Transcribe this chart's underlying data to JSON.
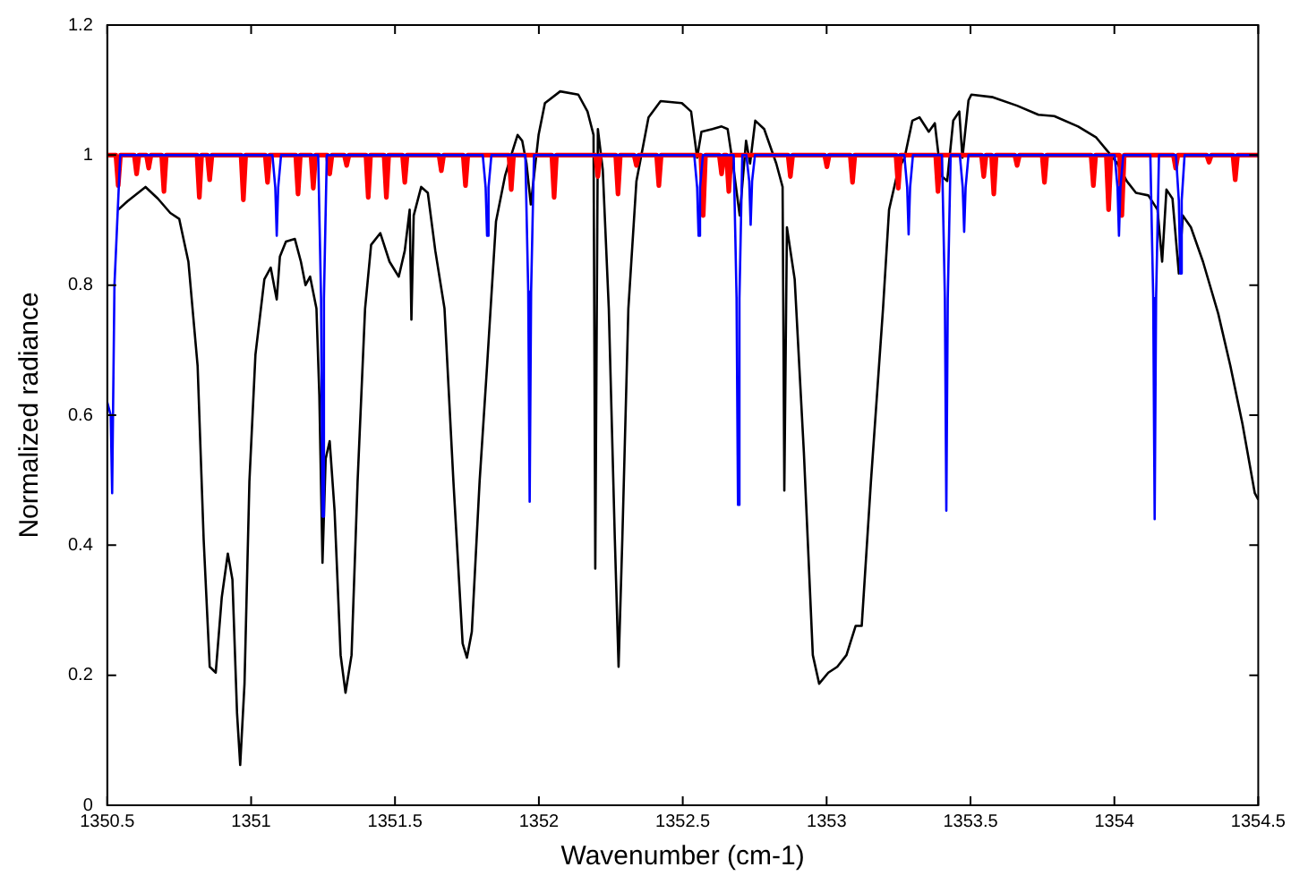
{
  "chart_data": {
    "type": "line",
    "xlabel": "Wavenumber (cm-1)",
    "ylabel": "Normalized radiance",
    "xlim": [
      1350.5,
      1354.5
    ],
    "xticks": [
      1350.5,
      1351,
      1351.5,
      1352,
      1352.5,
      1353,
      1353.5,
      1354,
      1354.5
    ],
    "ylim": [
      0,
      1.2
    ],
    "yticks": [
      0,
      0.2,
      0.4,
      0.6,
      0.8,
      1,
      1.2
    ],
    "grid": false,
    "legend": false,
    "marker": "none",
    "series": [
      {
        "color": "#000000",
        "x": [
          1350.538,
          1350.57,
          1350.633,
          1350.676,
          1350.719,
          1350.75,
          1350.782,
          1350.814,
          1350.835,
          1350.856,
          1350.877,
          1350.898,
          1350.919,
          1350.935,
          1350.951,
          1350.962,
          1350.977,
          1350.994,
          1351.015,
          1351.046,
          1351.068,
          1351.089,
          1351.1,
          1351.121,
          1351.152,
          1351.173,
          1351.189,
          1351.205,
          1351.227,
          1351.237,
          1351.248,
          1351.259,
          1351.273,
          1351.29,
          1351.311,
          1351.328,
          1351.349,
          1351.37,
          1351.396,
          1351.417,
          1351.449,
          1351.481,
          1351.513,
          1351.534,
          1351.551,
          1351.557,
          1351.565,
          1351.591,
          1351.614,
          1351.64,
          1351.672,
          1351.703,
          1351.735,
          1351.75,
          1351.767,
          1351.794,
          1351.82,
          1351.851,
          1351.883,
          1351.904,
          1351.926,
          1351.942,
          1351.957,
          1351.972,
          1351.999,
          1352.021,
          1352.074,
          1352.137,
          1352.169,
          1352.19,
          1352.196,
          1352.205,
          1352.222,
          1352.243,
          1352.264,
          1352.277,
          1352.29,
          1352.311,
          1352.339,
          1352.381,
          1352.423,
          1352.497,
          1352.529,
          1352.55,
          1352.565,
          1352.603,
          1352.635,
          1352.656,
          1352.677,
          1352.698,
          1352.72,
          1352.734,
          1352.752,
          1352.783,
          1352.825,
          1352.847,
          1352.853,
          1352.862,
          1352.889,
          1352.921,
          1352.952,
          1352.974,
          1353.006,
          1353.037,
          1353.069,
          1353.101,
          1353.122,
          1353.154,
          1353.196,
          1353.217,
          1353.249,
          1353.271,
          1353.298,
          1353.323,
          1353.355,
          1353.376,
          1353.397,
          1353.419,
          1353.44,
          1353.461,
          1353.472,
          1353.493,
          1353.503,
          1353.578,
          1353.662,
          1353.736,
          1353.791,
          1353.874,
          1353.937,
          1353.98,
          1354.011,
          1354.043,
          1354.075,
          1354.118,
          1354.15,
          1354.166,
          1354.181,
          1354.202,
          1354.224,
          1354.238,
          1354.266,
          1354.308,
          1354.361,
          1354.403,
          1354.445,
          1354.488,
          1354.5
        ],
        "values": [
          0.916,
          0.929,
          0.951,
          0.933,
          0.911,
          0.902,
          0.836,
          0.676,
          0.409,
          0.213,
          0.204,
          0.32,
          0.387,
          0.347,
          0.142,
          0.062,
          0.187,
          0.498,
          0.693,
          0.809,
          0.827,
          0.778,
          0.844,
          0.867,
          0.871,
          0.836,
          0.8,
          0.813,
          0.764,
          0.631,
          0.373,
          0.533,
          0.56,
          0.453,
          0.231,
          0.173,
          0.231,
          0.498,
          0.764,
          0.862,
          0.88,
          0.836,
          0.813,
          0.853,
          0.916,
          0.747,
          0.907,
          0.951,
          0.942,
          0.853,
          0.764,
          0.498,
          0.249,
          0.227,
          0.267,
          0.498,
          0.676,
          0.898,
          0.969,
          1.0,
          1.031,
          1.022,
          0.987,
          0.924,
          1.031,
          1.08,
          1.098,
          1.093,
          1.067,
          1.031,
          0.364,
          1.04,
          0.978,
          0.764,
          0.409,
          0.213,
          0.409,
          0.764,
          0.96,
          1.058,
          1.083,
          1.08,
          1.067,
          0.996,
          1.036,
          1.04,
          1.044,
          1.04,
          0.978,
          0.907,
          1.022,
          0.987,
          1.053,
          1.04,
          0.987,
          0.951,
          0.484,
          0.889,
          0.809,
          0.542,
          0.231,
          0.187,
          0.204,
          0.213,
          0.231,
          0.276,
          0.276,
          0.498,
          0.764,
          0.916,
          0.978,
          0.996,
          1.053,
          1.058,
          1.036,
          1.049,
          0.969,
          0.96,
          1.053,
          1.067,
          0.996,
          1.084,
          1.093,
          1.089,
          1.076,
          1.062,
          1.06,
          1.044,
          1.027,
          1.004,
          0.987,
          0.96,
          0.942,
          0.938,
          0.916,
          0.836,
          0.947,
          0.933,
          0.818,
          0.907,
          0.889,
          0.836,
          0.756,
          0.676,
          0.587,
          0.48,
          0.47
        ]
      },
      {
        "color": "#ff0000",
        "x": [
          1350.5,
          1350.53,
          1350.538,
          1350.546,
          1350.594,
          1350.602,
          1350.61,
          1350.636,
          1350.644,
          1350.652,
          1350.689,
          1350.697,
          1350.705,
          1350.812,
          1350.82,
          1350.828,
          1350.848,
          1350.856,
          1350.864,
          1350.965,
          1350.973,
          1350.981,
          1351.049,
          1351.057,
          1351.065,
          1351.155,
          1351.163,
          1351.171,
          1351.208,
          1351.216,
          1351.224,
          1351.265,
          1351.273,
          1351.281,
          1351.324,
          1351.332,
          1351.34,
          1351.399,
          1351.407,
          1351.415,
          1351.462,
          1351.47,
          1351.478,
          1351.526,
          1351.534,
          1351.542,
          1351.653,
          1351.661,
          1351.669,
          1351.737,
          1351.745,
          1351.753,
          1351.896,
          1351.904,
          1351.912,
          1352.045,
          1352.053,
          1352.061,
          1352.197,
          1352.205,
          1352.213,
          1352.267,
          1352.275,
          1352.283,
          1352.331,
          1352.339,
          1352.347,
          1352.409,
          1352.417,
          1352.425,
          1352.563,
          1352.571,
          1352.579,
          1352.627,
          1352.635,
          1352.643,
          1352.652,
          1352.66,
          1352.668,
          1352.866,
          1352.874,
          1352.882,
          1352.993,
          1353.001,
          1353.009,
          1353.082,
          1353.09,
          1353.098,
          1353.241,
          1353.249,
          1353.257,
          1353.379,
          1353.387,
          1353.395,
          1353.538,
          1353.546,
          1353.554,
          1353.573,
          1353.581,
          1353.589,
          1353.654,
          1353.662,
          1353.67,
          1353.749,
          1353.757,
          1353.765,
          1353.919,
          1353.927,
          1353.935,
          1353.972,
          1353.98,
          1353.988,
          1354.018,
          1354.026,
          1354.034,
          1354.205,
          1354.213,
          1354.221,
          1354.321,
          1354.329,
          1354.337,
          1354.412,
          1354.42,
          1354.428,
          1354.5
        ],
        "values": [
          1,
          1,
          0.953,
          1,
          1,
          0.971,
          1,
          1,
          0.98,
          1,
          1,
          0.944,
          1,
          1,
          0.935,
          1,
          1,
          0.962,
          1,
          1,
          0.931,
          1,
          1,
          0.958,
          1,
          1,
          0.94,
          1,
          1,
          0.949,
          1,
          1,
          0.971,
          1,
          1,
          0.984,
          1,
          1,
          0.935,
          1,
          1,
          0.935,
          1,
          1,
          0.958,
          1,
          1,
          0.976,
          1,
          1,
          0.953,
          1,
          1,
          0.947,
          1,
          1,
          0.935,
          1,
          1,
          0.967,
          1,
          1,
          0.94,
          1,
          1,
          0.984,
          1,
          1,
          0.953,
          1,
          1,
          0.907,
          1,
          1,
          0.971,
          1,
          1,
          0.944,
          1,
          1,
          0.967,
          1,
          1,
          0.982,
          1,
          1,
          0.958,
          1,
          1,
          0.949,
          1,
          1,
          0.944,
          1,
          1,
          0.967,
          1,
          1,
          0.94,
          1,
          1,
          0.984,
          1,
          1,
          0.958,
          1,
          1,
          0.953,
          1,
          1,
          0.916,
          1,
          1,
          0.907,
          1,
          1,
          0.98,
          1,
          1,
          0.989,
          1,
          1,
          0.962,
          1,
          1
        ]
      },
      {
        "color": "#0000ff",
        "x": [
          1350.5,
          1350.512,
          1350.517,
          1350.525,
          1350.545,
          1351.074,
          1351.084,
          1351.089,
          1351.094,
          1351.104,
          1351.233,
          1351.243,
          1351.248,
          1351.253,
          1351.263,
          1351.805,
          1351.815,
          1351.82,
          1351.825,
          1351.835,
          1351.953,
          1351.963,
          1351.968,
          1351.973,
          1351.983,
          1352.54,
          1352.55,
          1352.555,
          1352.56,
          1352.57,
          1352.677,
          1352.687,
          1352.692,
          1352.697,
          1352.707,
          1352.721,
          1352.731,
          1352.736,
          1352.741,
          1352.751,
          1353.27,
          1353.28,
          1353.285,
          1353.29,
          1353.3,
          1353.401,
          1353.411,
          1353.416,
          1353.421,
          1353.431,
          1353.463,
          1353.473,
          1353.478,
          1353.483,
          1353.493,
          1354.001,
          1354.011,
          1354.016,
          1354.021,
          1354.031,
          1354.125,
          1354.135,
          1354.14,
          1354.145,
          1354.155,
          1354.214,
          1354.224,
          1354.229,
          1354.234,
          1354.244,
          1354.5
        ],
        "values": [
          0.62,
          0.6,
          0.48,
          0.8,
          1,
          1,
          0.95,
          0.876,
          0.95,
          1,
          1,
          0.78,
          0.444,
          0.78,
          1,
          1,
          0.95,
          0.876,
          0.95,
          1,
          1,
          0.79,
          0.467,
          0.79,
          1,
          1,
          0.95,
          0.876,
          0.95,
          1,
          1,
          0.78,
          0.462,
          0.78,
          1,
          1,
          0.96,
          0.893,
          0.96,
          1,
          1,
          0.95,
          0.878,
          0.95,
          1,
          1,
          0.78,
          0.453,
          0.78,
          1,
          1,
          0.95,
          0.882,
          0.95,
          1,
          1,
          0.95,
          0.876,
          0.95,
          1,
          1,
          0.78,
          0.44,
          0.78,
          1,
          1,
          0.93,
          0.818,
          0.93,
          1,
          1
        ]
      }
    ]
  }
}
